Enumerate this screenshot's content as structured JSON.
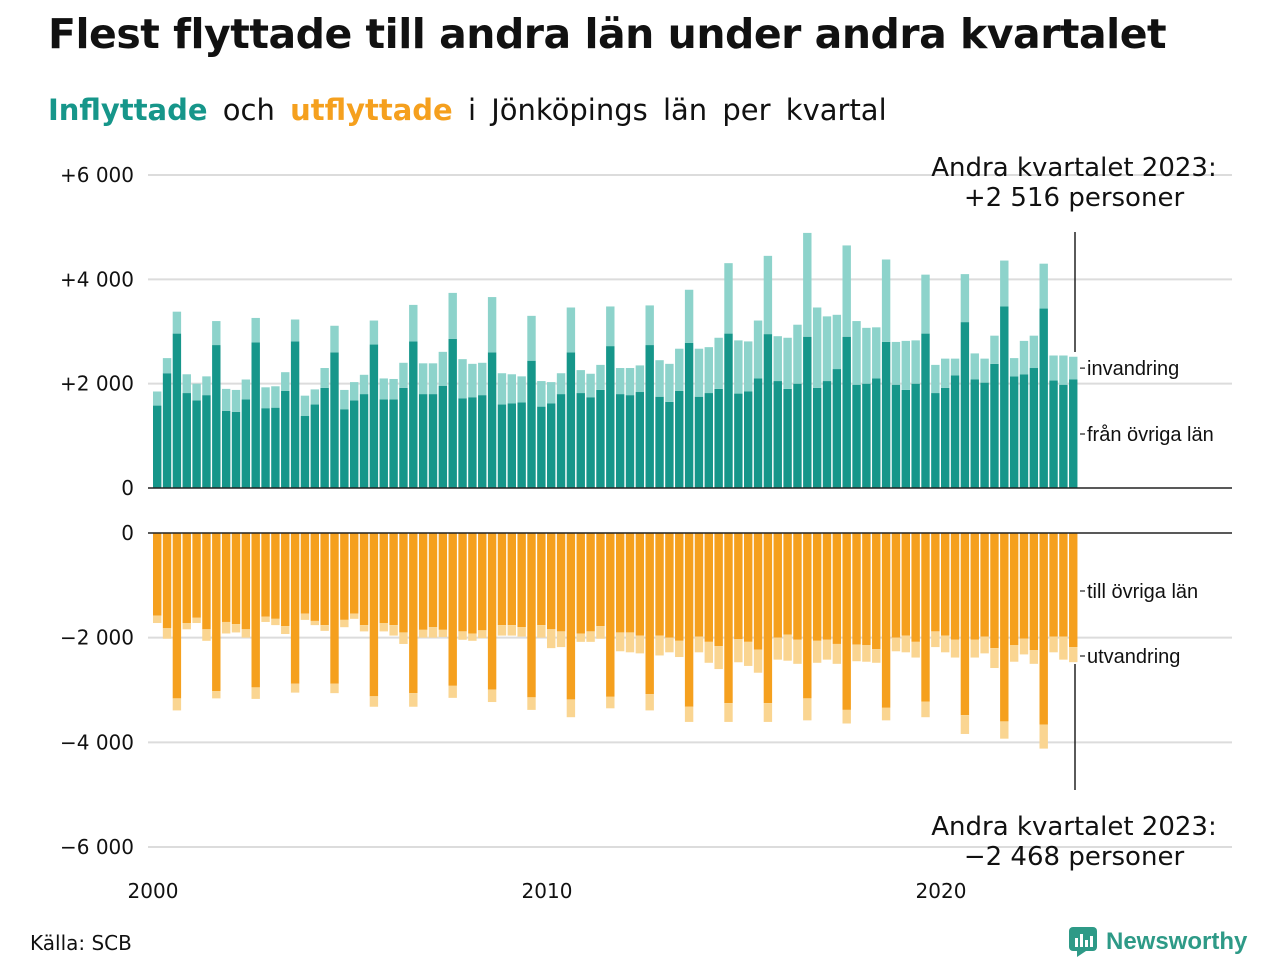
{
  "title": "Flest flyttade till andra län under andra kvartalet",
  "subtitle": {
    "inflow_word": "Inflyttade",
    "and_word": "och",
    "outflow_word": "utflyttade",
    "rest": "i Jönköpings län per kvartal"
  },
  "source": "Källa: SCB",
  "brand": "Newsworthy",
  "colors": {
    "in_domestic": "#16968a",
    "in_immigration": "#8dd3cb",
    "out_domestic": "#f5a01e",
    "out_emigration": "#fad591",
    "gridline": "#dcdcdc",
    "axis": "#222222"
  },
  "chart_data": [
    {
      "type": "bar",
      "stacked": true,
      "x_start": 2000,
      "x_unit": "quarter",
      "xticks": [
        "2000",
        "2010",
        "2020"
      ],
      "yticks": [
        0,
        2000,
        4000,
        6000
      ],
      "ytick_labels": [
        "0",
        "+2 000",
        "+4 000",
        "+6 000"
      ],
      "ylim": [
        0,
        6000
      ],
      "grid": true,
      "series": [
        {
          "name": "från övriga län",
          "values": [
            1580,
            2200,
            2960,
            1820,
            1680,
            1780,
            2740,
            1480,
            1460,
            1700,
            2790,
            1530,
            1540,
            1860,
            2810,
            1380,
            1600,
            1920,
            2600,
            1510,
            1680,
            1800,
            2750,
            1700,
            1700,
            1920,
            2810,
            1800,
            1800,
            1960,
            2860,
            1720,
            1740,
            1780,
            2600,
            1600,
            1620,
            1640,
            2440,
            1560,
            1620,
            1800,
            2600,
            1820,
            1740,
            1880,
            2720,
            1800,
            1780,
            1840,
            2740,
            1750,
            1650,
            1860,
            2780,
            1750,
            1820,
            1900,
            2960,
            1810,
            1850,
            2100,
            2950,
            2050,
            1900,
            2000,
            2900,
            1920,
            2050,
            2280,
            2900,
            1980,
            2000,
            2100,
            2800,
            1980,
            1880,
            2000,
            2960,
            1820,
            1920,
            2160,
            3180,
            2080,
            2020,
            2380,
            3480,
            2140,
            2180,
            2300,
            3440,
            2060,
            1980,
            2080
          ]
        },
        {
          "name": "invandring",
          "values": [
            270,
            290,
            420,
            360,
            320,
            360,
            460,
            420,
            420,
            380,
            470,
            400,
            410,
            360,
            420,
            390,
            290,
            380,
            510,
            370,
            350,
            370,
            460,
            400,
            390,
            480,
            700,
            590,
            590,
            650,
            880,
            750,
            640,
            620,
            1060,
            600,
            560,
            500,
            860,
            490,
            410,
            400,
            860,
            440,
            450,
            480,
            760,
            500,
            520,
            510,
            760,
            700,
            730,
            810,
            1020,
            920,
            880,
            980,
            1350,
            1020,
            960,
            1110,
            1500,
            860,
            980,
            1130,
            1990,
            1540,
            1240,
            1040,
            1750,
            1220,
            1070,
            980,
            1580,
            820,
            940,
            830,
            1130,
            540,
            560,
            320,
            920,
            500,
            460,
            540,
            880,
            350,
            640,
            620,
            860,
            480,
            560,
            436
          ]
        }
      ]
    },
    {
      "type": "bar",
      "stacked": true,
      "x_start": 2000,
      "x_unit": "quarter",
      "xticks": [
        "2000",
        "2010",
        "2020"
      ],
      "yticks": [
        0,
        -2000,
        -4000,
        -6000
      ],
      "ytick_labels": [
        "0",
        "−2 000",
        "−4 000",
        "−6 000"
      ],
      "ylim": [
        -6000,
        0
      ],
      "grid": true,
      "series": [
        {
          "name": "till övriga län",
          "values": [
            -1580,
            -1820,
            -3160,
            -1720,
            -1620,
            -1840,
            -3020,
            -1700,
            -1740,
            -1840,
            -2950,
            -1600,
            -1640,
            -1780,
            -2880,
            -1540,
            -1680,
            -1760,
            -2880,
            -1660,
            -1540,
            -1760,
            -3120,
            -1720,
            -1760,
            -1900,
            -3060,
            -1850,
            -1800,
            -1850,
            -2920,
            -1880,
            -1920,
            -1860,
            -2990,
            -1760,
            -1760,
            -1800,
            -3140,
            -1760,
            -1840,
            -1880,
            -3180,
            -1920,
            -1880,
            -1780,
            -3130,
            -1900,
            -1900,
            -1960,
            -3080,
            -1960,
            -2000,
            -2060,
            -3320,
            -1980,
            -2080,
            -2160,
            -3250,
            -2030,
            -2080,
            -2230,
            -3250,
            -2000,
            -1940,
            -2040,
            -3160,
            -2060,
            -2040,
            -2120,
            -3380,
            -2130,
            -2140,
            -2220,
            -3340,
            -2000,
            -1960,
            -2080,
            -3220,
            -1880,
            -1960,
            -2040,
            -3480,
            -2040,
            -1980,
            -2200,
            -3600,
            -2140,
            -2020,
            -2240,
            -3660,
            -1980,
            -1980,
            -2180
          ]
        },
        {
          "name": "utvandring",
          "values": [
            -140,
            -200,
            -230,
            -120,
            -100,
            -220,
            -140,
            -220,
            -160,
            -160,
            -220,
            -100,
            -120,
            -150,
            -170,
            -120,
            -80,
            -110,
            -180,
            -140,
            -100,
            -120,
            -200,
            -160,
            -200,
            -220,
            -260,
            -150,
            -200,
            -140,
            -230,
            -160,
            -140,
            -150,
            -240,
            -200,
            -200,
            -180,
            -240,
            -240,
            -360,
            -300,
            -340,
            -160,
            -200,
            -240,
            -220,
            -360,
            -380,
            -340,
            -310,
            -380,
            -280,
            -310,
            -290,
            -300,
            -400,
            -440,
            -360,
            -440,
            -460,
            -440,
            -360,
            -420,
            -500,
            -460,
            -420,
            -420,
            -380,
            -380,
            -260,
            -320,
            -320,
            -260,
            -240,
            -260,
            -320,
            -300,
            -300,
            -300,
            -320,
            -340,
            -360,
            -340,
            -320,
            -380,
            -330,
            -320,
            -300,
            -260,
            -460,
            -300,
            -440,
            -288
          ]
        }
      ]
    }
  ],
  "annotations": {
    "top_title": "Andra kvartalet 2023:",
    "top_value": "+2 516 personer",
    "bottom_title": "Andra kvartalet 2023:",
    "bottom_value": "−2 468 personer"
  }
}
